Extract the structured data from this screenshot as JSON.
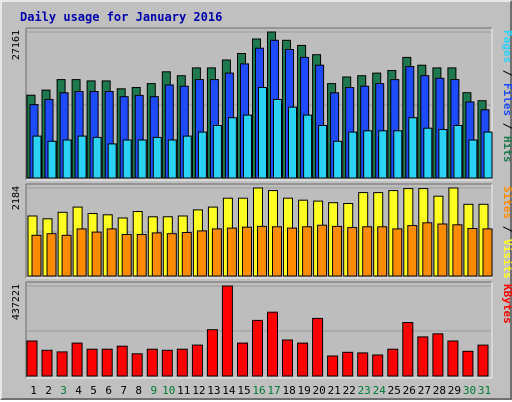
{
  "chart_data": {
    "type": "bar",
    "title": "Daily usage for January 2016",
    "categories": [
      "1",
      "2",
      "3",
      "4",
      "5",
      "6",
      "7",
      "8",
      "9",
      "10",
      "11",
      "12",
      "13",
      "14",
      "15",
      "16",
      "17",
      "18",
      "19",
      "20",
      "21",
      "22",
      "23",
      "24",
      "25",
      "26",
      "27",
      "28",
      "29",
      "30",
      "31"
    ],
    "weekend_days": [
      3,
      9,
      10,
      16,
      17,
      23,
      24,
      30,
      31
    ],
    "colors": {
      "background": "#c0c0c0",
      "panel": "#bdbdbd",
      "title": "#0000aa",
      "weekday_label": "#000000",
      "weekend_label": "#007a33",
      "hits": "#1e7a4e",
      "files": "#1f4bff",
      "pages": "#2ad2f4",
      "visits": "#ffff22",
      "sites": "#ff8c00",
      "kbytes": "#ff0000"
    },
    "panels": [
      {
        "name": "hits-files-pages",
        "ytick": "27161",
        "ymax": 27161,
        "legend": [
          {
            "text": "Pages",
            "color": "#2ad2f4"
          },
          {
            "text": " / ",
            "color": "#000000"
          },
          {
            "text": "Files",
            "color": "#1f4bff"
          },
          {
            "text": " / ",
            "color": "#000000"
          },
          {
            "text": "Hits",
            "color": "#1e7a4e"
          }
        ],
        "series": [
          {
            "name": "Hits",
            "color": "#1e7a4e",
            "values": [
              15400,
              16350,
              18300,
              18300,
              18060,
              18060,
              16590,
              16830,
              17560,
              19760,
              19030,
              20490,
              20490,
              21950,
              23170,
              25860,
              27160,
              25620,
              24660,
              22930,
              17560,
              18790,
              19030,
              19520,
              20000,
              22440,
              20980,
              20490,
              20490,
              15860,
              14380
            ]
          },
          {
            "name": "Files",
            "color": "#1f4bff",
            "values": [
              13650,
              14630,
              15850,
              16100,
              16100,
              16100,
              15120,
              15370,
              15120,
              17310,
              17070,
              18300,
              18300,
              19520,
              21220,
              24150,
              25620,
              23900,
              22440,
              20980,
              15850,
              16830,
              17070,
              17560,
              18300,
              20730,
              19030,
              18540,
              18300,
              14140,
              12680
            ]
          },
          {
            "name": "Pages",
            "color": "#2ad2f4",
            "values": [
              7800,
              6830,
              7070,
              7800,
              7560,
              6340,
              7070,
              7070,
              7560,
              7070,
              7800,
              8540,
              9760,
              11220,
              11710,
              16830,
              14630,
              13170,
              11710,
              9760,
              6830,
              8540,
              8780,
              8780,
              8780,
              11220,
              9270,
              9030,
              9760,
              7070,
              8540
            ]
          }
        ]
      },
      {
        "name": "visits-sites",
        "ytick": "2184",
        "ymax": 2184,
        "legend": [
          {
            "text": "Sites",
            "color": "#ff8c00"
          },
          {
            "text": " / ",
            "color": "#000000"
          },
          {
            "text": "Visits",
            "color": "#ffff22"
          }
        ],
        "series": [
          {
            "name": "Visits",
            "color": "#ffff22",
            "values": [
              1490,
              1420,
              1580,
              1710,
              1550,
              1520,
              1440,
              1600,
              1470,
              1470,
              1490,
              1640,
              1710,
              1930,
              1930,
              2184,
              2120,
              1930,
              1880,
              1860,
              1820,
              1800,
              2070,
              2070,
              2120,
              2170,
              2170,
              1980,
              2184,
              1780,
              1780
            ]
          },
          {
            "name": "Sites",
            "color": "#ff8c00",
            "values": [
              1010,
              1050,
              1010,
              1170,
              1090,
              1170,
              1030,
              1030,
              1070,
              1050,
              1080,
              1120,
              1170,
              1190,
              1210,
              1230,
              1220,
              1190,
              1220,
              1260,
              1230,
              1200,
              1220,
              1220,
              1170,
              1250,
              1320,
              1290,
              1270,
              1180,
              1170
            ]
          }
        ]
      },
      {
        "name": "kbytes",
        "ytick": "437221",
        "ymax": 437221,
        "legend": [
          {
            "text": "KBytes",
            "color": "#ff0000"
          }
        ],
        "series": [
          {
            "name": "KBytes",
            "color": "#ff0000",
            "values": [
              170000,
              125000,
              117000,
              160000,
              130000,
              130000,
              145000,
              108000,
              130000,
              125000,
              130000,
              150000,
              225000,
              437221,
              160000,
              270000,
              310000,
              175000,
              160000,
              280000,
              97000,
              115000,
              112000,
              102000,
              130000,
              260000,
              190000,
              205000,
              170000,
              120000,
              150000
            ]
          }
        ]
      }
    ]
  }
}
